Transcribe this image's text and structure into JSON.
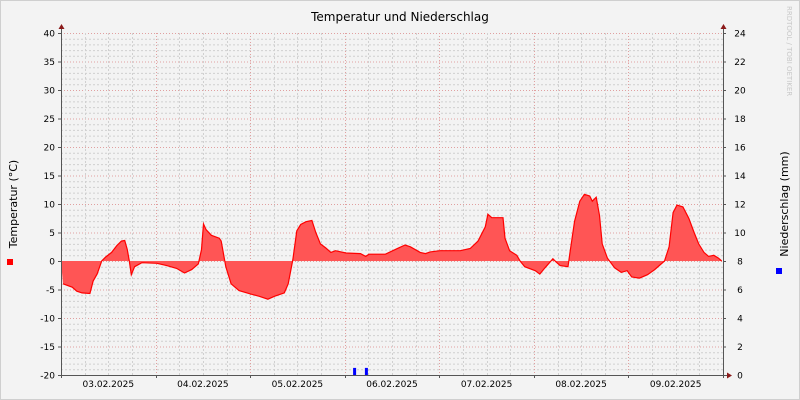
{
  "chart_data": {
    "type": "area",
    "title": "Temperatur und Niederschlag",
    "ylabel": "Temperatur (°C)",
    "y2label": "Niederschlag (mm)",
    "watermark": "RRDTOOL / TOBI OETIKER",
    "xlim": [
      "2025-02-03T00:00",
      "2025-02-10T00:00"
    ],
    "ylim": [
      -20,
      40
    ],
    "y2lim": [
      0,
      24
    ],
    "yticks": [
      -20,
      -15,
      -10,
      -5,
      0,
      5,
      10,
      15,
      20,
      25,
      30,
      35,
      40
    ],
    "y2ticks": [
      0,
      2,
      4,
      6,
      8,
      10,
      12,
      14,
      16,
      18,
      20,
      22,
      24
    ],
    "xtick_labels": [
      "03.02.2025",
      "04.02.2025",
      "05.02.2025",
      "06.02.2025",
      "07.02.2025",
      "08.02.2025",
      "09.02.2025"
    ],
    "grid": true,
    "colors": {
      "temperature": "#ff0000",
      "temperature_fill": "#ff5555",
      "precipitation": "#0000ff",
      "major_grid": "#e0a0a0",
      "minor_grid": "#d0d0d0"
    },
    "series": [
      {
        "key": "temperature",
        "axis": "left",
        "points": [
          [
            "2025-02-03T00:30",
            -4.0
          ],
          [
            "2025-02-03T02:50",
            -4.6
          ],
          [
            "2025-02-03T04:00",
            -5.3
          ],
          [
            "2025-02-03T05:20",
            -5.6
          ],
          [
            "2025-02-03T07:20",
            -5.7
          ],
          [
            "2025-02-03T08:10",
            -3.5
          ],
          [
            "2025-02-03T09:10",
            -2.3
          ],
          [
            "2025-02-03T10:20",
            0.0
          ],
          [
            "2025-02-03T11:20",
            0.7
          ],
          [
            "2025-02-03T12:50",
            1.5
          ],
          [
            "2025-02-03T14:10",
            2.7
          ],
          [
            "2025-02-03T15:20",
            3.5
          ],
          [
            "2025-02-03T16:10",
            3.6
          ],
          [
            "2025-02-03T16:50",
            2.0
          ],
          [
            "2025-02-03T17:20",
            0.0
          ],
          [
            "2025-02-03T17:50",
            -2.4
          ],
          [
            "2025-02-03T18:40",
            -1.0
          ],
          [
            "2025-02-03T20:30",
            -0.3
          ],
          [
            "2025-02-04T00:20",
            -0.4
          ],
          [
            "2025-02-04T02:50",
            -0.8
          ],
          [
            "2025-02-04T05:20",
            -1.3
          ],
          [
            "2025-02-04T07:20",
            -2.1
          ],
          [
            "2025-02-04T09:10",
            -1.5
          ],
          [
            "2025-02-04T10:50",
            -0.5
          ],
          [
            "2025-02-04T11:40",
            2.0
          ],
          [
            "2025-02-04T12:10",
            6.5
          ],
          [
            "2025-02-04T12:50",
            5.5
          ],
          [
            "2025-02-04T14:10",
            4.5
          ],
          [
            "2025-02-04T16:10",
            4.0
          ],
          [
            "2025-02-04T16:40",
            3.5
          ],
          [
            "2025-02-04T17:50",
            -1.0
          ],
          [
            "2025-02-04T19:10",
            -4.0
          ],
          [
            "2025-02-04T21:10",
            -5.2
          ],
          [
            "2025-02-05T00:10",
            -5.8
          ],
          [
            "2025-02-05T02:20",
            -6.2
          ],
          [
            "2025-02-05T04:30",
            -6.7
          ],
          [
            "2025-02-05T06:10",
            -6.2
          ],
          [
            "2025-02-05T08:40",
            -5.6
          ],
          [
            "2025-02-05T09:40",
            -4.0
          ],
          [
            "2025-02-05T10:50",
            0.2
          ],
          [
            "2025-02-05T11:50",
            5.3
          ],
          [
            "2025-02-05T12:50",
            6.4
          ],
          [
            "2025-02-05T14:10",
            6.9
          ],
          [
            "2025-02-05T15:40",
            7.1
          ],
          [
            "2025-02-05T16:40",
            5.0
          ],
          [
            "2025-02-05T17:50",
            3.0
          ],
          [
            "2025-02-05T19:10",
            2.3
          ],
          [
            "2025-02-05T20:30",
            1.5
          ],
          [
            "2025-02-05T21:40",
            1.8
          ],
          [
            "2025-02-06T00:20",
            1.4
          ],
          [
            "2025-02-06T04:00",
            1.3
          ],
          [
            "2025-02-06T05:20",
            0.8
          ],
          [
            "2025-02-06T06:10",
            1.2
          ],
          [
            "2025-02-06T10:20",
            1.2
          ],
          [
            "2025-02-06T13:40",
            2.3
          ],
          [
            "2025-02-06T15:20",
            2.8
          ],
          [
            "2025-02-06T16:40",
            2.5
          ],
          [
            "2025-02-06T19:10",
            1.5
          ],
          [
            "2025-02-06T20:30",
            1.3
          ],
          [
            "2025-02-06T21:40",
            1.6
          ],
          [
            "2025-02-07T00:10",
            1.8
          ],
          [
            "2025-02-07T05:20",
            1.8
          ],
          [
            "2025-02-07T07:50",
            2.2
          ],
          [
            "2025-02-07T09:50",
            3.5
          ],
          [
            "2025-02-07T11:40",
            6.0
          ],
          [
            "2025-02-07T12:20",
            8.2
          ],
          [
            "2025-02-07T13:20",
            7.6
          ],
          [
            "2025-02-07T16:10",
            7.6
          ],
          [
            "2025-02-07T16:40",
            4.0
          ],
          [
            "2025-02-07T17:50",
            1.8
          ],
          [
            "2025-02-07T19:40",
            1.0
          ],
          [
            "2025-02-07T20:30",
            0.0
          ],
          [
            "2025-02-07T21:40",
            -1.0
          ],
          [
            "2025-02-08T00:20",
            -1.7
          ],
          [
            "2025-02-08T01:30",
            -2.3
          ],
          [
            "2025-02-08T02:50",
            -1.2
          ],
          [
            "2025-02-08T04:50",
            0.4
          ],
          [
            "2025-02-08T05:40",
            -0.2
          ],
          [
            "2025-02-08T06:40",
            -0.8
          ],
          [
            "2025-02-08T08:40",
            -1.0
          ],
          [
            "2025-02-08T09:10",
            1.5
          ],
          [
            "2025-02-08T10:20",
            7.0
          ],
          [
            "2025-02-08T11:40",
            10.5
          ],
          [
            "2025-02-08T12:50",
            11.7
          ],
          [
            "2025-02-08T14:10",
            11.4
          ],
          [
            "2025-02-08T14:50",
            10.5
          ],
          [
            "2025-02-08T15:50",
            11.2
          ],
          [
            "2025-02-08T16:40",
            8.0
          ],
          [
            "2025-02-08T17:20",
            3.0
          ],
          [
            "2025-02-08T18:40",
            0.5
          ],
          [
            "2025-02-08T20:30",
            -1.2
          ],
          [
            "2025-02-08T22:10",
            -2.0
          ],
          [
            "2025-02-08T23:40",
            -1.7
          ],
          [
            "2025-02-09T00:50",
            -2.8
          ],
          [
            "2025-02-09T02:50",
            -3.0
          ],
          [
            "2025-02-09T04:50",
            -2.4
          ],
          [
            "2025-02-09T06:40",
            -1.5
          ],
          [
            "2025-02-09T09:10",
            0.0
          ],
          [
            "2025-02-09T10:20",
            2.5
          ],
          [
            "2025-02-09T11:20",
            8.5
          ],
          [
            "2025-02-09T12:20",
            9.8
          ],
          [
            "2025-02-09T13:50",
            9.5
          ],
          [
            "2025-02-09T15:20",
            7.5
          ],
          [
            "2025-02-09T16:40",
            5.0
          ],
          [
            "2025-02-09T17:50",
            3.0
          ],
          [
            "2025-02-09T19:10",
            1.5
          ],
          [
            "2025-02-09T20:20",
            0.8
          ],
          [
            "2025-02-09T21:40",
            1.0
          ],
          [
            "2025-02-09T22:50",
            0.5
          ],
          [
            "2025-02-09T23:40",
            0.0
          ]
        ]
      },
      {
        "key": "precipitation",
        "axis": "right",
        "type": "bar",
        "points": [
          [
            "2025-02-06T02:30",
            0.5
          ],
          [
            "2025-02-06T05:30",
            0.5
          ]
        ]
      }
    ]
  }
}
